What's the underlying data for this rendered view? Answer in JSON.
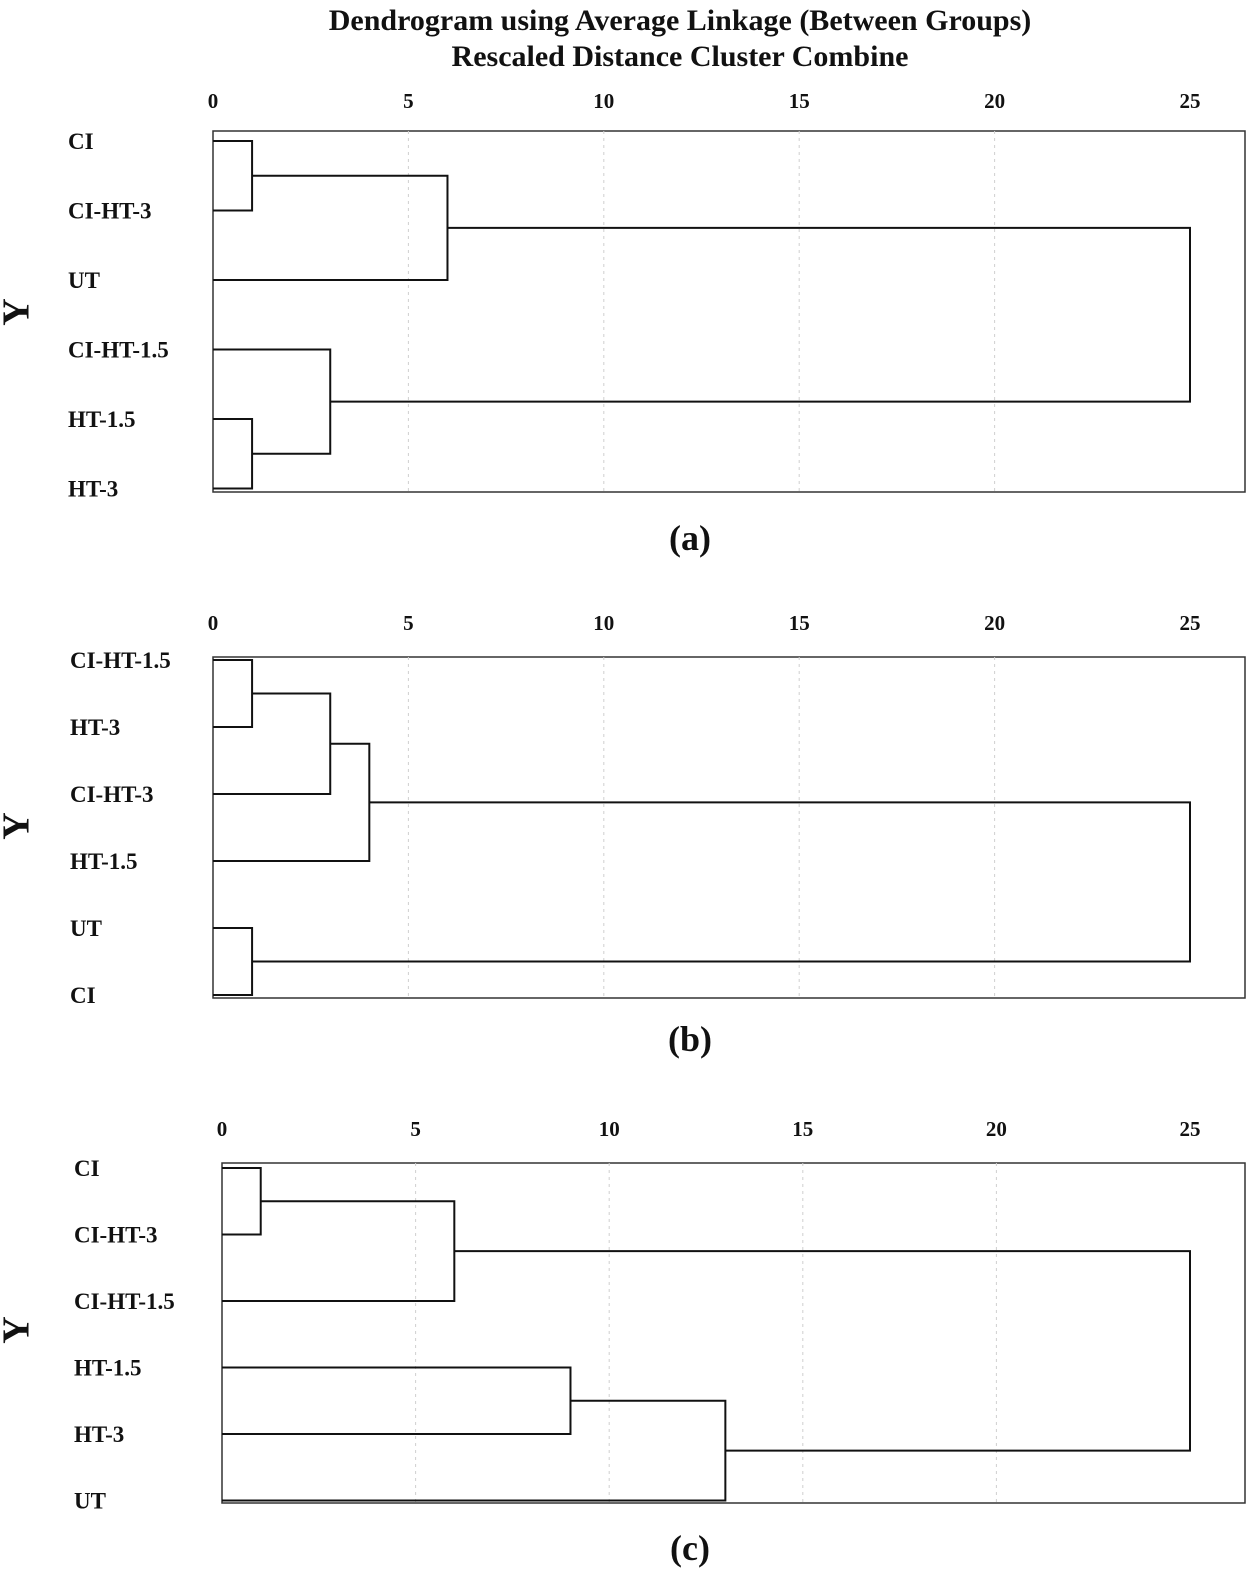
{
  "header": {
    "title": "Dendrogram using Average Linkage (Between Groups)",
    "subtitle": "Rescaled Distance Cluster Combine"
  },
  "chart_data": [
    {
      "type": "dendrogram",
      "panel_label": "(a)",
      "ylabel": "Y",
      "xlim": [
        0,
        25
      ],
      "xticks": [
        0,
        5,
        10,
        15,
        20,
        25
      ],
      "leaves": [
        "CI",
        "CI-HT-3",
        "UT",
        "CI-HT-1.5",
        "HT-1.5",
        "HT-3"
      ],
      "merges": [
        {
          "left": 0,
          "right": 1,
          "distance": 1
        },
        {
          "left": 4,
          "right": 5,
          "distance": 1
        },
        {
          "left": 3,
          "right": 7,
          "distance": 3
        },
        {
          "left": 6,
          "right": 2,
          "distance": 6
        },
        {
          "left": 9,
          "right": 8,
          "distance": 25
        }
      ]
    },
    {
      "type": "dendrogram",
      "panel_label": "(b)",
      "ylabel": "Y",
      "xlim": [
        0,
        25
      ],
      "xticks": [
        0,
        5,
        10,
        15,
        20,
        25
      ],
      "leaves": [
        "CI-HT-1.5",
        "HT-3",
        "CI-HT-3",
        "HT-1.5",
        "UT",
        "CI"
      ],
      "merges": [
        {
          "left": 0,
          "right": 1,
          "distance": 1
        },
        {
          "left": 4,
          "right": 5,
          "distance": 1
        },
        {
          "left": 6,
          "right": 2,
          "distance": 3
        },
        {
          "left": 8,
          "right": 3,
          "distance": 4
        },
        {
          "left": 9,
          "right": 7,
          "distance": 25
        }
      ]
    },
    {
      "type": "dendrogram",
      "panel_label": "(c)",
      "ylabel": "Y",
      "xlim": [
        0,
        25
      ],
      "xticks": [
        0,
        5,
        10,
        15,
        20,
        25
      ],
      "leaves": [
        "CI",
        "CI-HT-3",
        "CI-HT-1.5",
        "HT-1.5",
        "HT-3",
        "UT"
      ],
      "merges": [
        {
          "left": 0,
          "right": 1,
          "distance": 1
        },
        {
          "left": 6,
          "right": 2,
          "distance": 6
        },
        {
          "left": 3,
          "right": 4,
          "distance": 9
        },
        {
          "left": 8,
          "right": 5,
          "distance": 13
        },
        {
          "left": 7,
          "right": 9,
          "distance": 25
        }
      ]
    }
  ]
}
